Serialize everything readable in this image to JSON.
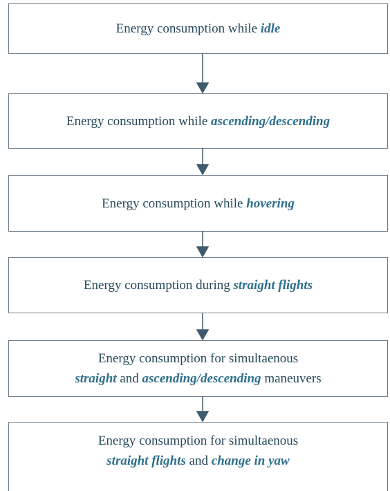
{
  "nodes": [
    {
      "lines": [
        [
          {
            "text": "Energy consumption while "
          },
          {
            "text": "idle",
            "em": true
          }
        ]
      ]
    },
    {
      "lines": [
        [
          {
            "text": "Energy consumption while "
          },
          {
            "text": "ascending/descending",
            "em": true
          }
        ]
      ]
    },
    {
      "lines": [
        [
          {
            "text": "Energy consumption while "
          },
          {
            "text": "hovering",
            "em": true
          }
        ]
      ]
    },
    {
      "lines": [
        [
          {
            "text": "Energy consumption during "
          },
          {
            "text": "straight flights",
            "em": true
          }
        ]
      ]
    },
    {
      "lines": [
        [
          {
            "text": "Energy consumption for simultaenous"
          }
        ],
        [
          {
            "text": "straight",
            "em": true
          },
          {
            "text": " and "
          },
          {
            "text": "ascending/descending",
            "em": true
          },
          {
            "text": " maneuvers"
          }
        ]
      ]
    },
    {
      "lines": [
        [
          {
            "text": "Energy consumption for simultaenous"
          }
        ],
        [
          {
            "text": "straight flights",
            "em": true
          },
          {
            "text": " and "
          },
          {
            "text": "change in yaw",
            "em": true
          }
        ]
      ]
    }
  ]
}
